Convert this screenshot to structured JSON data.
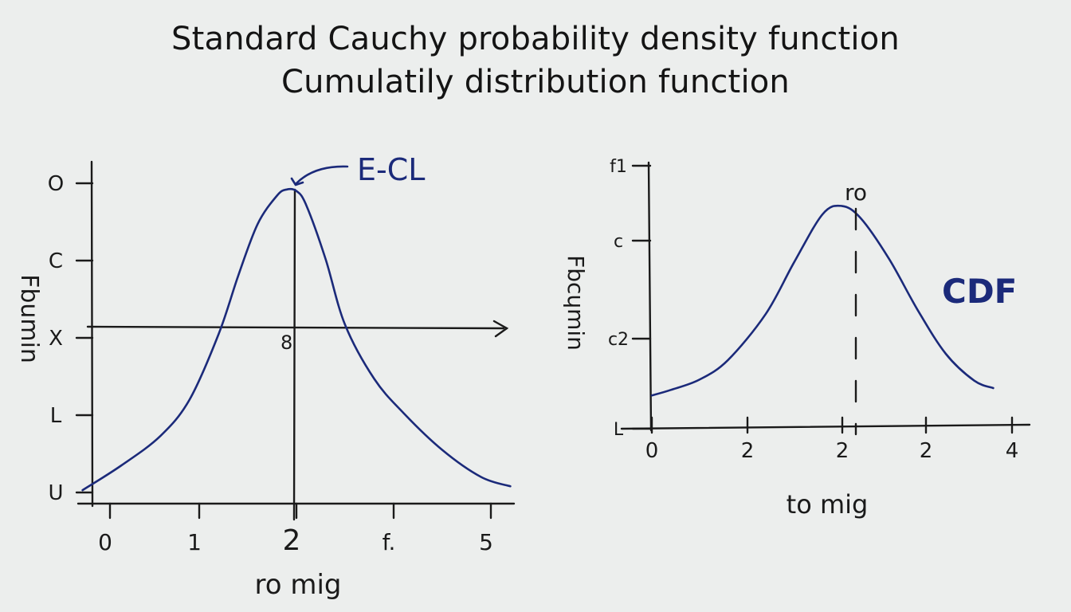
{
  "title": {
    "line1": "Standard Cauchy probability density function",
    "line2": "Cumulatily distribution function"
  },
  "chart_data": [
    {
      "type": "line",
      "xlabel": "ro mig",
      "ylabel": "Fbumin",
      "x_ticks": [
        {
          "x": 0,
          "label": "0"
        },
        {
          "x": 1,
          "label": "1"
        },
        {
          "x": 2,
          "label": "2"
        },
        {
          "x": 3,
          "label": "f."
        },
        {
          "x": 4,
          "label": "5"
        }
      ],
      "y_ticks": [
        {
          "y": 0,
          "label": "U"
        },
        {
          "y": 1,
          "label": "L"
        },
        {
          "y": 2,
          "label": "X"
        },
        {
          "y": 3,
          "label": "C"
        },
        {
          "y": 4,
          "label": "O"
        }
      ],
      "xlim": [
        0,
        4.5
      ],
      "ylim": [
        0,
        4.2
      ],
      "series": [
        {
          "x": [
            -0.2,
            0.2,
            0.6,
            0.9,
            1.2,
            1.4,
            1.6,
            1.8,
            1.9,
            2.0,
            2.1,
            2.3,
            2.5,
            2.8,
            3.1,
            3.5,
            3.9,
            4.2
          ],
          "y": [
            0.03,
            0.35,
            0.73,
            1.2,
            2.05,
            2.8,
            3.47,
            3.84,
            3.92,
            3.9,
            3.72,
            3.02,
            2.17,
            1.47,
            1.03,
            0.55,
            0.2,
            0.08
          ],
          "color": "#1b2a7a"
        }
      ],
      "crosshair": {
        "x": 2,
        "y": 2
      },
      "annotations": [
        {
          "text": "E-CL",
          "x": 2,
          "y": 3.95
        },
        {
          "text": "8",
          "x": 1.9,
          "y": 1.87
        }
      ],
      "grid": false
    },
    {
      "type": "line",
      "xlabel": "to mig",
      "ylabel": "Fbcɥmin",
      "x_ticks": [
        {
          "x": 0,
          "label": "0"
        },
        {
          "x": 1,
          "label": "2"
        },
        {
          "x": 2,
          "label": "2"
        },
        {
          "x": 3,
          "label": "2"
        },
        {
          "x": 4,
          "label": "4"
        }
      ],
      "y_ticks": [
        {
          "y": 0,
          "label": "L"
        },
        {
          "y": 1,
          "label": "c2"
        },
        {
          "y": 2,
          "label": "c"
        },
        {
          "y": 3,
          "label": "f1"
        }
      ],
      "xlim": [
        0,
        4.2
      ],
      "ylim": [
        0,
        3.3
      ],
      "series": [
        {
          "x": [
            0,
            0.2,
            0.5,
            0.8,
            1.2,
            1.5,
            1.8,
            2.0,
            2.2,
            2.5,
            2.8,
            3.1,
            3.4,
            3.6
          ],
          "y": [
            0.36,
            0.42,
            0.53,
            0.74,
            1.24,
            1.8,
            2.32,
            2.41,
            2.28,
            1.84,
            1.29,
            0.81,
            0.52,
            0.44
          ],
          "color": "#1b2a7a"
        }
      ],
      "peak_marker": {
        "x": 2,
        "label": "ro"
      },
      "annotations": [
        {
          "text": "CDF",
          "x": 3.5,
          "y": 1.6
        }
      ],
      "grid": false
    }
  ]
}
